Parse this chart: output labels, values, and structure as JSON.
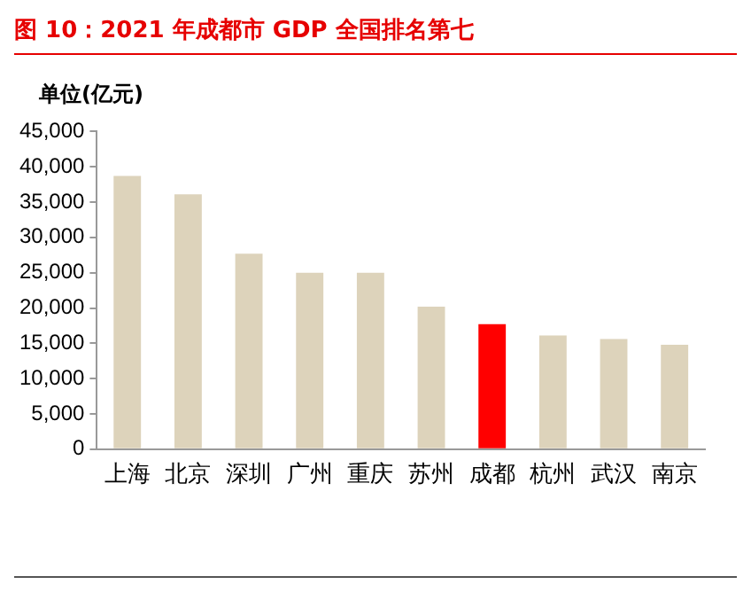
{
  "chart_data": {
    "type": "bar",
    "title": "图 10：2021 年成都市 GDP 全国排名第七",
    "ylabel": "单位(亿元)",
    "categories": [
      "上海",
      "北京",
      "深圳",
      "广州",
      "重庆",
      "苏州",
      "成都",
      "杭州",
      "武汉",
      "南京"
    ],
    "values": [
      38700,
      36100,
      27700,
      25000,
      25000,
      20200,
      17700,
      16100,
      15600,
      14800
    ],
    "colors": [
      "#ddd3bb",
      "#ddd3bb",
      "#ddd3bb",
      "#ddd3bb",
      "#ddd3bb",
      "#ddd3bb",
      "#ff0000",
      "#ddd3bb",
      "#ddd3bb",
      "#ddd3bb"
    ],
    "ylim": [
      0,
      45000
    ],
    "yticks": [
      0,
      {
        "value": 5000,
        "label": "5,000"
      },
      {
        "value": 10000,
        "label": "10,000"
      },
      {
        "value": 15000,
        "label": "15,000"
      },
      {
        "value": 20000,
        "label": "20,000"
      },
      {
        "value": 25000,
        "label": "25,000"
      },
      {
        "value": 30000,
        "label": "30,000"
      },
      {
        "value": 35000,
        "label": "35,000"
      },
      {
        "value": 40000,
        "label": "40,000"
      },
      {
        "value": 45000,
        "label": "45,000"
      }
    ],
    "grid": false,
    "legend": false
  }
}
